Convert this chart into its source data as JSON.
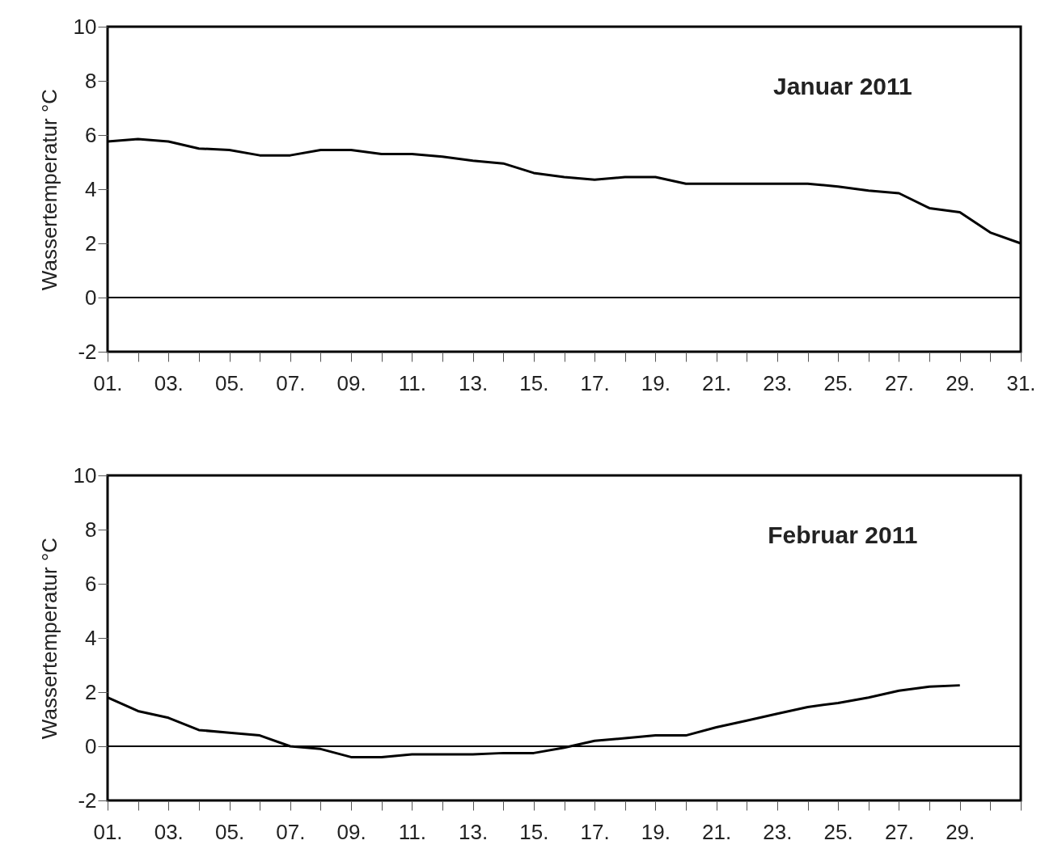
{
  "chart_data": [
    {
      "type": "line",
      "title": "Januar 2011",
      "ylabel": "Wassertemperatur °C",
      "x": [
        1,
        2,
        3,
        4,
        5,
        6,
        7,
        8,
        9,
        10,
        11,
        12,
        13,
        14,
        15,
        16,
        17,
        18,
        19,
        20,
        21,
        22,
        23,
        24,
        25,
        26,
        27,
        28,
        29,
        30,
        31
      ],
      "series": [
        {
          "color": "#000000",
          "values": [
            5.76,
            5.85,
            5.76,
            5.5,
            5.45,
            5.25,
            5.25,
            5.45,
            5.45,
            5.3,
            5.3,
            5.2,
            5.05,
            4.95,
            4.6,
            4.45,
            4.35,
            4.45,
            4.45,
            4.2,
            4.2,
            4.2,
            4.2,
            4.2,
            4.1,
            3.95,
            3.85,
            3.3,
            3.15,
            2.4,
            2.0
          ]
        }
      ],
      "xlim": [
        1,
        31
      ],
      "xticks": [
        {
          "value": 1,
          "label": "01."
        },
        {
          "value": 2,
          "label": null
        },
        {
          "value": 3,
          "label": "03."
        },
        {
          "value": 4,
          "label": null
        },
        {
          "value": 5,
          "label": "05."
        },
        {
          "value": 6,
          "label": null
        },
        {
          "value": 7,
          "label": "07."
        },
        {
          "value": 8,
          "label": null
        },
        {
          "value": 9,
          "label": "09."
        },
        {
          "value": 10,
          "label": null
        },
        {
          "value": 11,
          "label": "11."
        },
        {
          "value": 12,
          "label": null
        },
        {
          "value": 13,
          "label": "13."
        },
        {
          "value": 14,
          "label": null
        },
        {
          "value": 15,
          "label": "15."
        },
        {
          "value": 16,
          "label": null
        },
        {
          "value": 17,
          "label": "17."
        },
        {
          "value": 18,
          "label": null
        },
        {
          "value": 19,
          "label": "19."
        },
        {
          "value": 20,
          "label": null
        },
        {
          "value": 21,
          "label": "21."
        },
        {
          "value": 22,
          "label": null
        },
        {
          "value": 23,
          "label": "23."
        },
        {
          "value": 24,
          "label": null
        },
        {
          "value": 25,
          "label": "25."
        },
        {
          "value": 26,
          "label": null
        },
        {
          "value": 27,
          "label": "27."
        },
        {
          "value": 28,
          "label": null
        },
        {
          "value": 29,
          "label": "29."
        },
        {
          "value": 30,
          "label": null
        },
        {
          "value": 31,
          "label": "31."
        }
      ],
      "ylim": [
        -2,
        10
      ],
      "yticks": [
        -2,
        0,
        2,
        4,
        6,
        8,
        10
      ],
      "ref_lines": [
        {
          "axis": "y",
          "value": 0,
          "color": "#000000"
        }
      ],
      "grid": false,
      "marker": "none",
      "line_style": "solid"
    },
    {
      "type": "line",
      "title": "Februar 2011",
      "ylabel": "Wassertemperatur °C",
      "x": [
        1,
        2,
        3,
        4,
        5,
        6,
        7,
        8,
        9,
        10,
        11,
        12,
        13,
        14,
        15,
        16,
        17,
        18,
        19,
        20,
        21,
        22,
        23,
        24,
        25,
        26,
        27,
        28,
        29
      ],
      "series": [
        {
          "color": "#000000",
          "values": [
            1.8,
            1.3,
            1.05,
            0.6,
            0.5,
            0.4,
            0.0,
            -0.1,
            -0.4,
            -0.4,
            -0.3,
            -0.3,
            -0.3,
            -0.25,
            -0.25,
            -0.05,
            0.2,
            0.3,
            0.4,
            0.4,
            0.7,
            0.95,
            1.2,
            1.45,
            1.6,
            1.8,
            2.05,
            2.2,
            2.25
          ]
        }
      ],
      "xlim": [
        1,
        31
      ],
      "xticks": [
        {
          "value": 1,
          "label": "01."
        },
        {
          "value": 2,
          "label": null
        },
        {
          "value": 3,
          "label": "03."
        },
        {
          "value": 4,
          "label": null
        },
        {
          "value": 5,
          "label": "05."
        },
        {
          "value": 6,
          "label": null
        },
        {
          "value": 7,
          "label": "07."
        },
        {
          "value": 8,
          "label": null
        },
        {
          "value": 9,
          "label": "09."
        },
        {
          "value": 10,
          "label": null
        },
        {
          "value": 11,
          "label": "11."
        },
        {
          "value": 12,
          "label": null
        },
        {
          "value": 13,
          "label": "13."
        },
        {
          "value": 14,
          "label": null
        },
        {
          "value": 15,
          "label": "15."
        },
        {
          "value": 16,
          "label": null
        },
        {
          "value": 17,
          "label": "17."
        },
        {
          "value": 18,
          "label": null
        },
        {
          "value": 19,
          "label": "19."
        },
        {
          "value": 20,
          "label": null
        },
        {
          "value": 21,
          "label": "21."
        },
        {
          "value": 22,
          "label": null
        },
        {
          "value": 23,
          "label": "23."
        },
        {
          "value": 24,
          "label": null
        },
        {
          "value": 25,
          "label": "25."
        },
        {
          "value": 26,
          "label": null
        },
        {
          "value": 27,
          "label": "27."
        },
        {
          "value": 28,
          "label": null
        },
        {
          "value": 29,
          "label": "29."
        },
        {
          "value": 30,
          "label": null
        },
        {
          "value": 31,
          "label": null
        }
      ],
      "ylim": [
        -2,
        10
      ],
      "yticks": [
        -2,
        0,
        2,
        4,
        6,
        8,
        10
      ],
      "ref_lines": [
        {
          "axis": "y",
          "value": 0,
          "color": "#000000"
        }
      ],
      "grid": false,
      "marker": "none",
      "line_style": "solid"
    }
  ]
}
